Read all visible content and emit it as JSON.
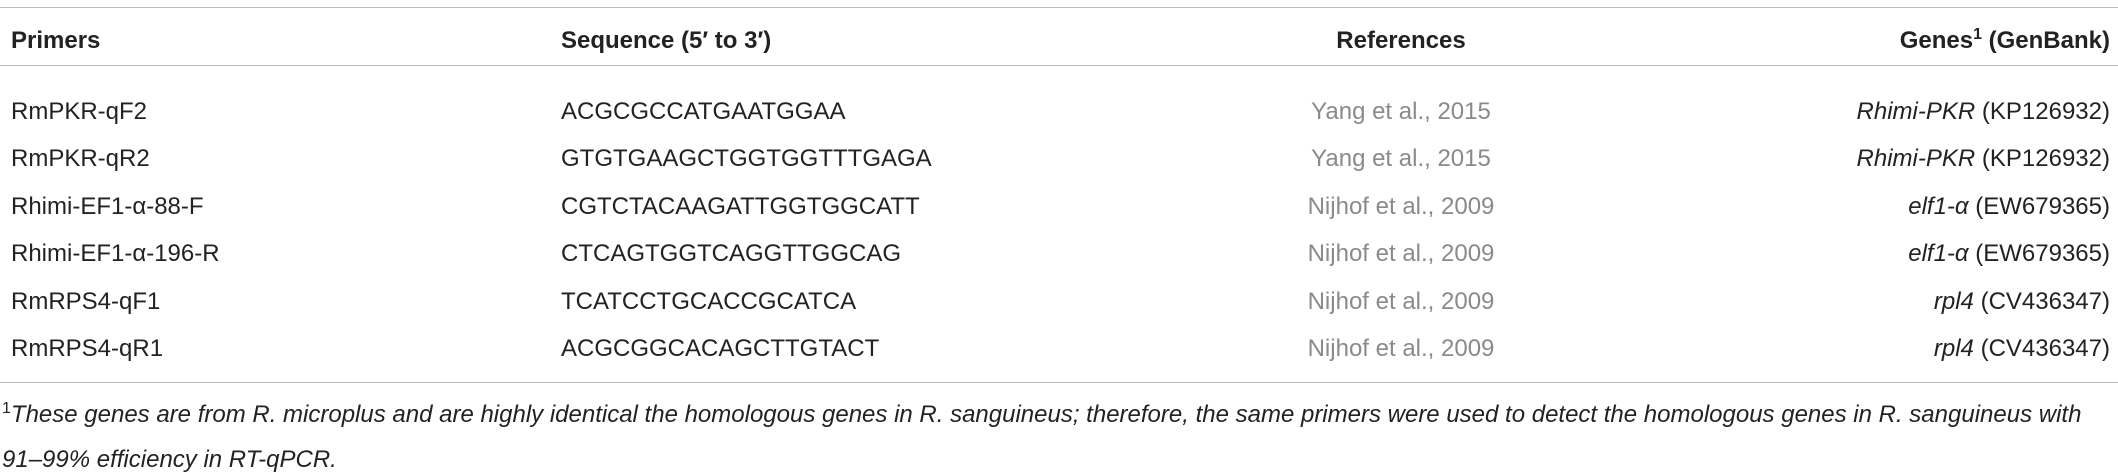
{
  "table": {
    "headers": [
      "Primers",
      "Sequence (5′ to 3′)",
      "References"
    ],
    "genes_header": {
      "text": "Genes",
      "sup": "1",
      "suffix": "(GenBank)"
    },
    "rows": [
      {
        "primer": "RmPKR-qF2",
        "sequence": "ACGCGCCATGAATGGAA",
        "reference": "Yang et al., 2015",
        "gene": "Rhimi-PKR",
        "accession": "(KP126932)"
      },
      {
        "primer": "RmPKR-qR2",
        "sequence": "GTGTGAAGCTGGTGGTTTGAGA",
        "reference": "Yang et al., 2015",
        "gene": "Rhimi-PKR",
        "accession": "(KP126932)"
      },
      {
        "primer": "Rhimi-EF1-α-88-F",
        "sequence": "CGTCTACAAGATTGGTGGCATT",
        "reference": "Nijhof et al., 2009",
        "gene": "elf1-α",
        "accession": "(EW679365)"
      },
      {
        "primer": "Rhimi-EF1-α-196-R",
        "sequence": "CTCAGTGGTCAGGTTGGCAG",
        "reference": "Nijhof et al., 2009",
        "gene": "elf1-α",
        "accession": "(EW679365)"
      },
      {
        "primer": "RmRPS4-qF1",
        "sequence": "TCATCCTGCACCGCATCA",
        "reference": "Nijhof et al., 2009",
        "gene": "rpl4",
        "accession": "(CV436347)"
      },
      {
        "primer": "RmRPS4-qR1",
        "sequence": "ACGCGGCACAGCTTGTACT",
        "reference": "Nijhof et al., 2009",
        "gene": "rpl4",
        "accession": "(CV436347)"
      }
    ],
    "footnote": {
      "marker": "1",
      "text": "These genes are from R. microplus and are highly identical the homologous genes in R. sanguineus; therefore, the same primers were used to detect the homologous genes in R. sanguineus with 91–99% efficiency in RT-qPCR."
    }
  }
}
